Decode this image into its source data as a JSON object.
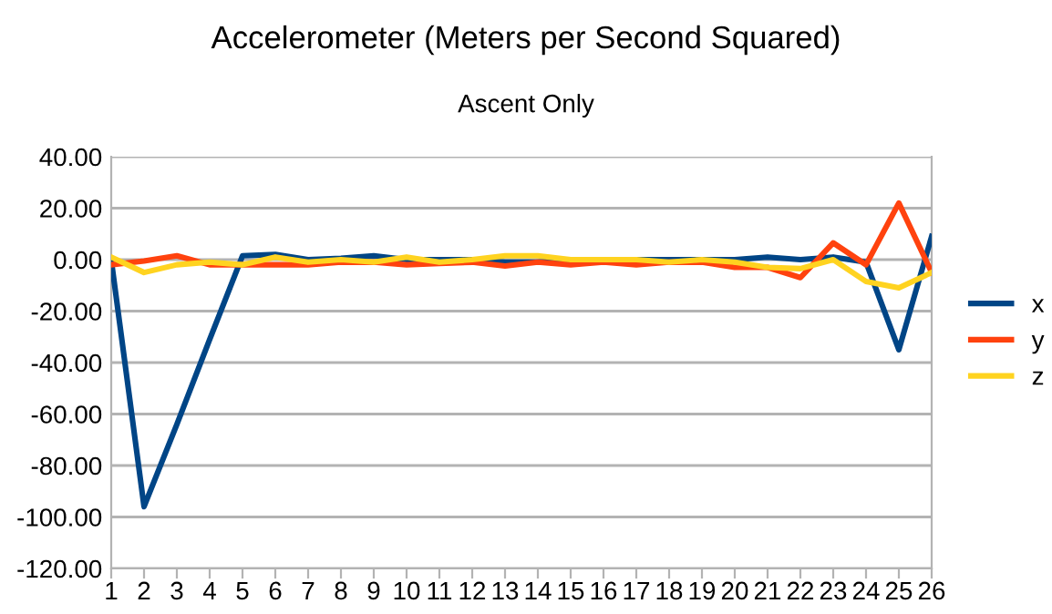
{
  "chart_data": {
    "type": "line",
    "title": "Accelerometer (Meters per Second Squared)",
    "subtitle": "Ascent Only",
    "categories": [
      "1",
      "2",
      "3",
      "4",
      "5",
      "6",
      "7",
      "8",
      "9",
      "10",
      "11",
      "12",
      "13",
      "14",
      "15",
      "16",
      "17",
      "18",
      "19",
      "20",
      "21",
      "22",
      "23",
      "24",
      "25",
      "26"
    ],
    "series": [
      {
        "name": "x",
        "color": "#004586",
        "values": [
          0,
          -96,
          -64,
          -31,
          1.5,
          2,
          0,
          0.5,
          1.5,
          0,
          0,
          0,
          -1,
          -1,
          0,
          0,
          0,
          0,
          0,
          0,
          1,
          0,
          1,
          -1,
          -35,
          9
        ]
      },
      {
        "name": "y",
        "color": "#ff420e",
        "values": [
          -2,
          -0.5,
          1.5,
          -2,
          -2,
          -2,
          -2,
          -1,
          -1,
          -2,
          -1.5,
          -1,
          -2.5,
          -1,
          -2,
          -1,
          -2,
          -1,
          -1,
          -3,
          -3,
          -7,
          6.5,
          -2,
          22,
          -5
        ]
      },
      {
        "name": "z",
        "color": "#ffd320",
        "values": [
          1,
          -5,
          -2,
          -1,
          -2,
          1,
          -1,
          0,
          -1,
          1,
          -1,
          0,
          1.5,
          1.5,
          0,
          0,
          0,
          -1,
          0,
          -1,
          -3,
          -3.5,
          0,
          -8.5,
          -11,
          -5
        ]
      }
    ],
    "ylim": [
      -120,
      40
    ],
    "yticks": [
      {
        "value": 40,
        "label": "40.00"
      },
      {
        "value": 20,
        "label": "20.00"
      },
      {
        "value": 0,
        "label": "0.00"
      },
      {
        "value": -20,
        "label": "-20.00"
      },
      {
        "value": -40,
        "label": "-40.00"
      },
      {
        "value": -60,
        "label": "-60.00"
      },
      {
        "value": -80,
        "label": "-80.00"
      },
      {
        "value": -100,
        "label": "-100.00"
      },
      {
        "value": -120,
        "label": "-120.00"
      }
    ],
    "grid": "y",
    "legend": "right",
    "marker": "none",
    "line_style": "solid"
  }
}
